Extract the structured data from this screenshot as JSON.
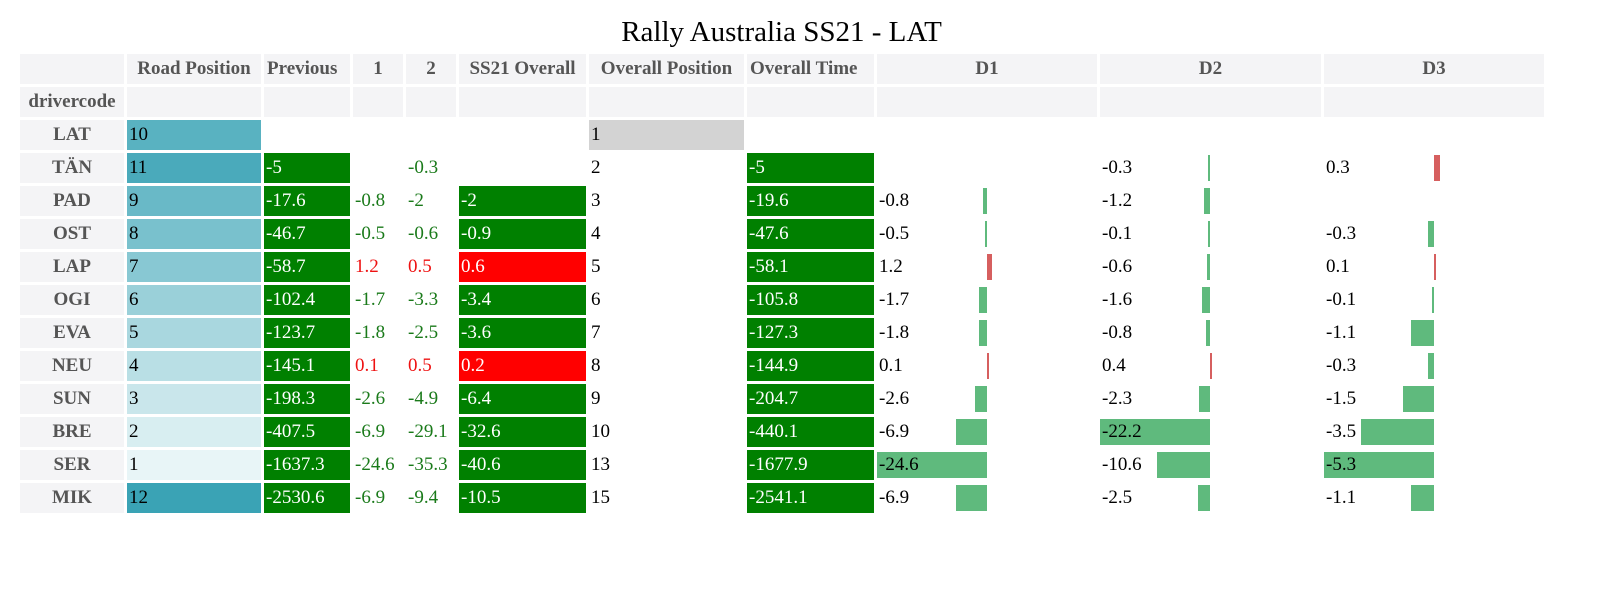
{
  "title": "Rally Australia SS21 - LAT",
  "index_name": "drivercode",
  "columns": [
    "Road Position",
    "Previous",
    "1",
    "2",
    "SS21 Overall",
    "Overall Position",
    "Overall Time",
    "D1",
    "D2",
    "D3"
  ],
  "colors": {
    "green_fill": "#008000",
    "red_fill": "#ff0000",
    "green_text": "#1a7a1a",
    "red_text": "#ee1111",
    "bar_negative": "#5fba7d",
    "bar_positive": "#d65f5f",
    "highlight_grey": "#d3d3d3",
    "road_position_scale": [
      "#e8f5f7",
      "#3aa3b5"
    ]
  },
  "rows": [
    {
      "code": "LAT",
      "road": "10",
      "road_level": 0.82,
      "prev": "",
      "s1": "",
      "s2": "",
      "ss_overall": "",
      "overall_pos": "1",
      "overall_time": "",
      "d1": "",
      "d2": "",
      "d3": ""
    },
    {
      "code": "TÄN",
      "road": "11",
      "road_level": 0.91,
      "prev": "-5",
      "s1": "",
      "s2": "-0.3",
      "ss_overall": "",
      "overall_pos": "2",
      "overall_time": "-5",
      "d1": "",
      "d2": "-0.3",
      "d3": "0.3"
    },
    {
      "code": "PAD",
      "road": "9",
      "road_level": 0.73,
      "prev": "-17.6",
      "s1": "-0.8",
      "s2": "-2",
      "ss_overall": "-2",
      "overall_pos": "3",
      "overall_time": "-19.6",
      "d1": "-0.8",
      "d2": "-1.2",
      "d3": ""
    },
    {
      "code": "OST",
      "road": "8",
      "road_level": 0.64,
      "prev": "-46.7",
      "s1": "-0.5",
      "s2": "-0.6",
      "ss_overall": "-0.9",
      "overall_pos": "4",
      "overall_time": "-47.6",
      "d1": "-0.5",
      "d2": "-0.1",
      "d3": "-0.3"
    },
    {
      "code": "LAP",
      "road": "7",
      "road_level": 0.55,
      "prev": "-58.7",
      "s1": "1.2",
      "s2": "0.5",
      "ss_overall": "0.6",
      "overall_pos": "5",
      "overall_time": "-58.1",
      "d1": "1.2",
      "d2": "-0.6",
      "d3": "0.1"
    },
    {
      "code": "OGI",
      "road": "6",
      "road_level": 0.45,
      "prev": "-102.4",
      "s1": "-1.7",
      "s2": "-3.3",
      "ss_overall": "-3.4",
      "overall_pos": "6",
      "overall_time": "-105.8",
      "d1": "-1.7",
      "d2": "-1.6",
      "d3": "-0.1"
    },
    {
      "code": "EVA",
      "road": "5",
      "road_level": 0.36,
      "prev": "-123.7",
      "s1": "-1.8",
      "s2": "-2.5",
      "ss_overall": "-3.6",
      "overall_pos": "7",
      "overall_time": "-127.3",
      "d1": "-1.8",
      "d2": "-0.8",
      "d3": "-1.1"
    },
    {
      "code": "NEU",
      "road": "4",
      "road_level": 0.27,
      "prev": "-145.1",
      "s1": "0.1",
      "s2": "0.5",
      "ss_overall": "0.2",
      "overall_pos": "8",
      "overall_time": "-144.9",
      "d1": "0.1",
      "d2": "0.4",
      "d3": "-0.3"
    },
    {
      "code": "SUN",
      "road": "3",
      "road_level": 0.18,
      "prev": "-198.3",
      "s1": "-2.6",
      "s2": "-4.9",
      "ss_overall": "-6.4",
      "overall_pos": "9",
      "overall_time": "-204.7",
      "d1": "-2.6",
      "d2": "-2.3",
      "d3": "-1.5"
    },
    {
      "code": "BRE",
      "road": "2",
      "road_level": 0.09,
      "prev": "-407.5",
      "s1": "-6.9",
      "s2": "-29.1",
      "ss_overall": "-32.6",
      "overall_pos": "10",
      "overall_time": "-440.1",
      "d1": "-6.9",
      "d2": "-22.2",
      "d3": "-3.5"
    },
    {
      "code": "SER",
      "road": "1",
      "road_level": 0.0,
      "prev": "-1637.3",
      "s1": "-24.6",
      "s2": "-35.3",
      "ss_overall": "-40.6",
      "overall_pos": "13",
      "overall_time": "-1677.9",
      "d1": "-24.6",
      "d2": "-10.6",
      "d3": "-5.3"
    },
    {
      "code": "MIK",
      "road": "12",
      "road_level": 1.0,
      "prev": "-2530.6",
      "s1": "-6.9",
      "s2": "-9.4",
      "ss_overall": "-10.5",
      "overall_pos": "15",
      "overall_time": "-2541.1",
      "d1": "-6.9",
      "d2": "-2.5",
      "d3": "-1.1"
    }
  ]
}
